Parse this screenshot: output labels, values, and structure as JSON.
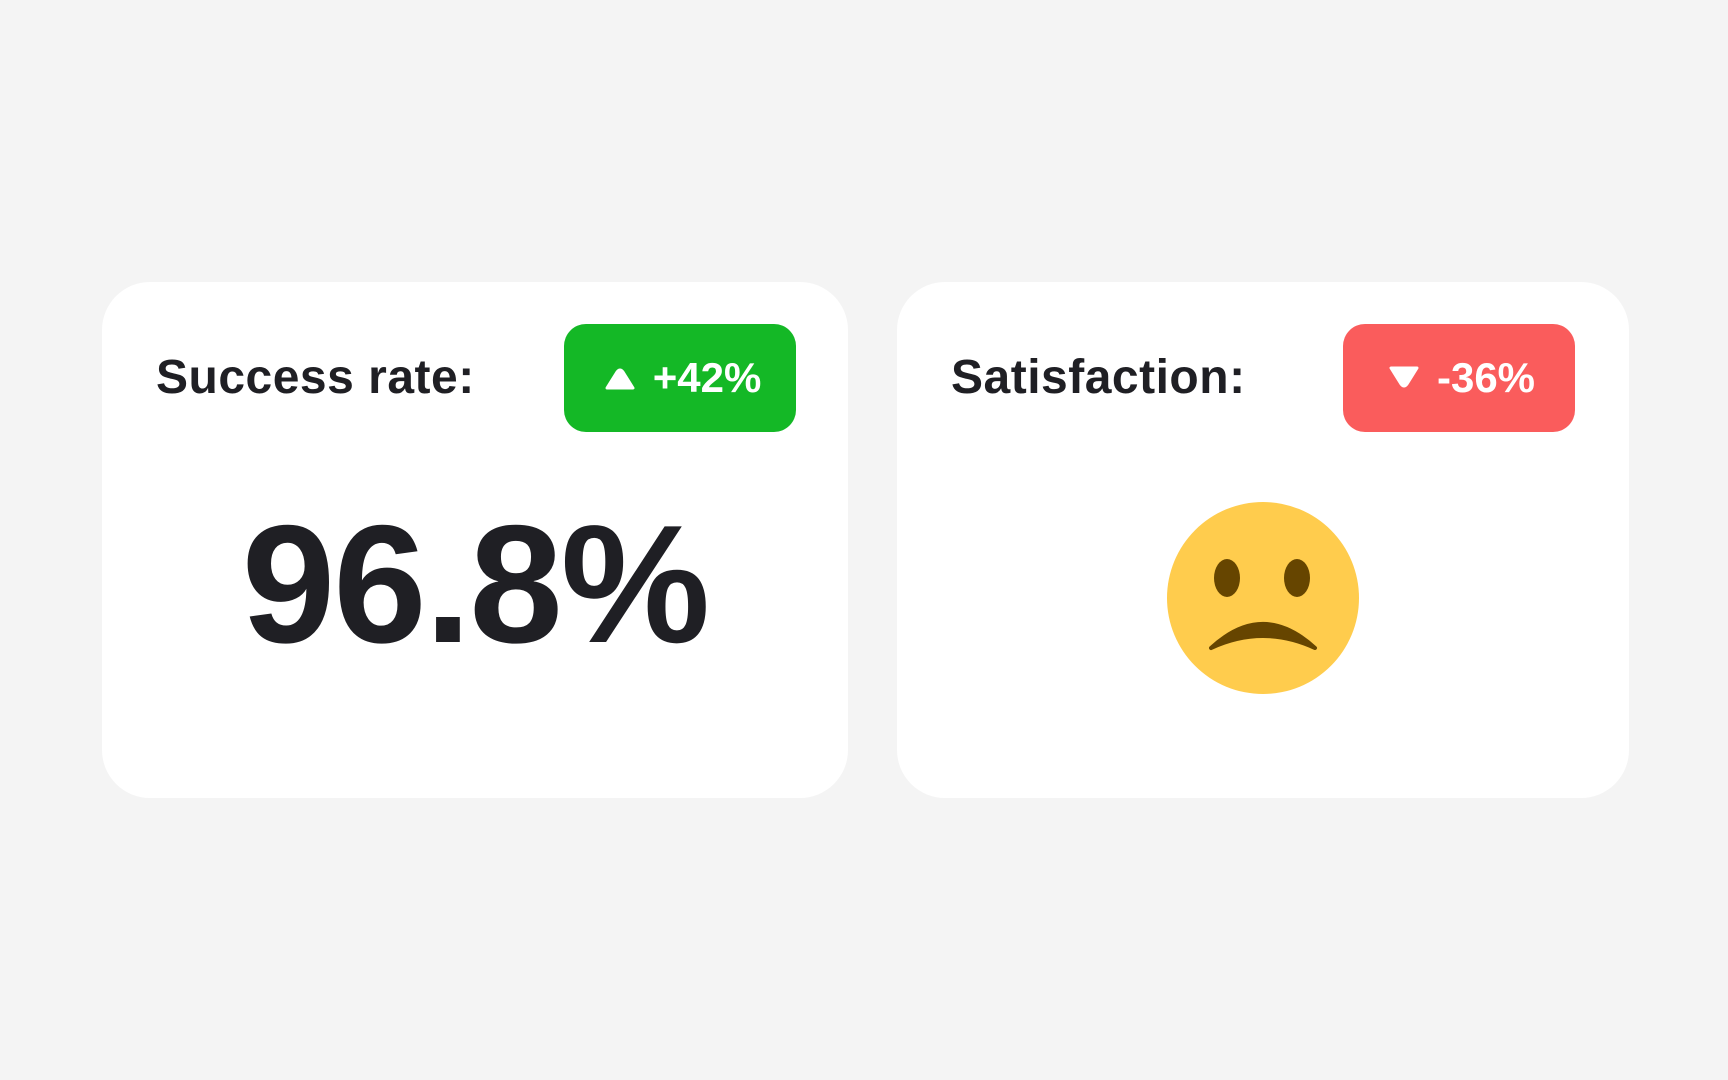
{
  "cards": [
    {
      "label": "Success rate:",
      "badge": {
        "text": "+42%",
        "direction": "up",
        "icon": "triangle-up-icon",
        "color": "#14b826"
      },
      "value": "96.8%"
    },
    {
      "label": "Satisfaction:",
      "badge": {
        "text": "-36%",
        "direction": "down",
        "icon": "triangle-down-icon",
        "color": "#fa5c5c"
      },
      "emoji": "frowning-face-icon",
      "emoji_colors": {
        "face": "#ffcc4d",
        "features": "#664500"
      }
    }
  ],
  "colors": {
    "background": "#f4f4f4",
    "card": "#ffffff",
    "text": "#1f1f24"
  }
}
